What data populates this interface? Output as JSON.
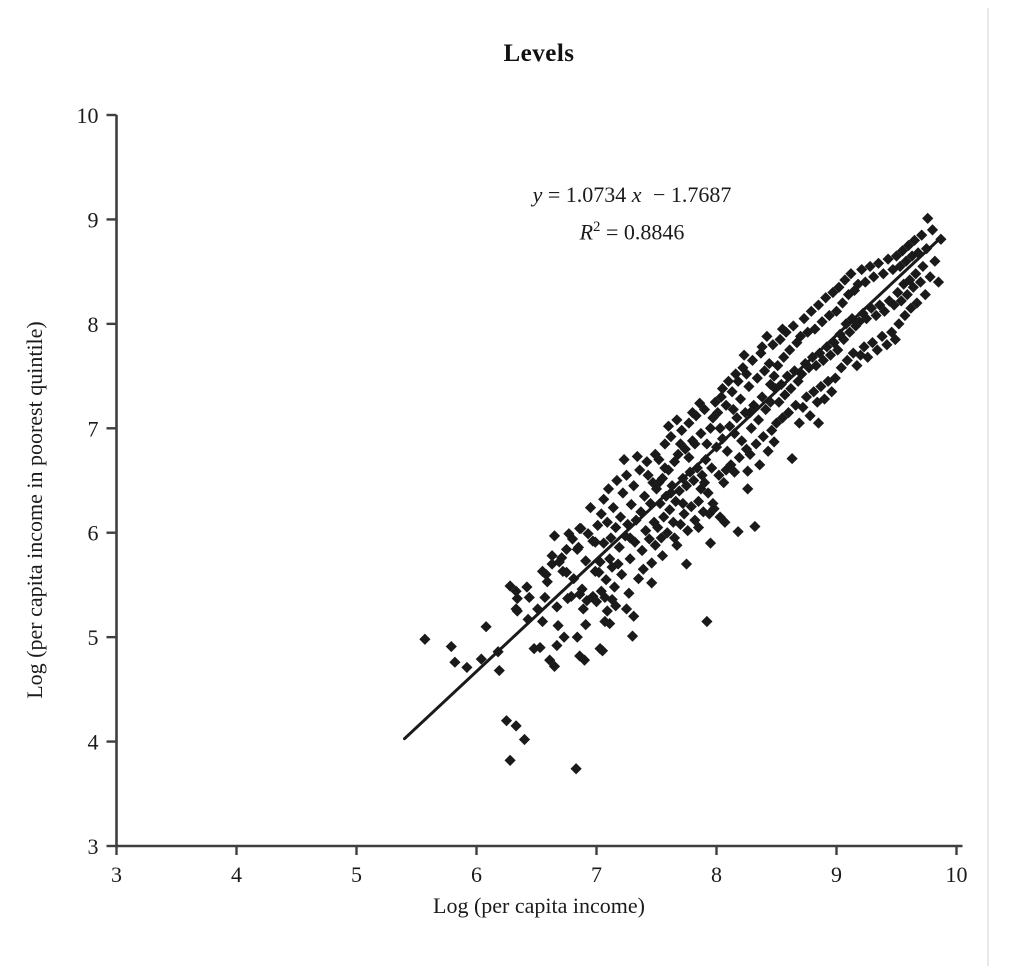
{
  "chart_data": {
    "type": "scatter",
    "title": "Levels",
    "xlabel": "Log (per capita income)",
    "ylabel": "Log (per capita income in poorest quintile)",
    "xlim": [
      3,
      10
    ],
    "ylim": [
      3,
      10
    ],
    "x_ticks": [
      "3",
      "4",
      "5",
      "6",
      "7",
      "8",
      "9",
      "10"
    ],
    "y_ticks": [
      "3",
      "4",
      "5",
      "6",
      "7",
      "8",
      "9",
      "10"
    ],
    "grid": false,
    "legend": "none",
    "marker": "diamond",
    "marker_color": "#1a1a1a",
    "axis_color": "#3f3f3f",
    "regression": {
      "slope": 1.0734,
      "intercept": -1.7687,
      "r_squared": 0.8846,
      "line_x": [
        5.4,
        9.86
      ]
    },
    "points": [
      [
        5.57,
        4.98
      ],
      [
        5.79,
        4.91
      ],
      [
        5.82,
        4.76
      ],
      [
        5.92,
        4.71
      ],
      [
        6.04,
        4.79
      ],
      [
        6.08,
        5.1
      ],
      [
        6.18,
        4.86
      ],
      [
        6.19,
        4.68
      ],
      [
        6.28,
        5.49
      ],
      [
        6.33,
        5.44
      ],
      [
        6.34,
        5.37
      ],
      [
        6.42,
        5.48
      ],
      [
        6.44,
        5.38
      ],
      [
        6.33,
        5.27
      ],
      [
        6.48,
        4.89
      ],
      [
        6.25,
        4.2
      ],
      [
        6.33,
        4.15
      ],
      [
        6.4,
        4.02
      ],
      [
        6.28,
        3.82
      ],
      [
        6.83,
        3.74
      ],
      [
        6.34,
        5.25
      ],
      [
        6.43,
        5.17
      ],
      [
        6.57,
        5.38
      ],
      [
        6.58,
        5.6
      ],
      [
        6.63,
        5.78
      ],
      [
        6.63,
        5.7
      ],
      [
        6.69,
        5.72
      ],
      [
        6.72,
        5.63
      ],
      [
        6.75,
        5.84
      ],
      [
        6.8,
        5.94
      ],
      [
        6.86,
        6.04
      ],
      [
        6.93,
        5.99
      ],
      [
        6.97,
        5.92
      ],
      [
        6.84,
        5.84
      ],
      [
        6.67,
        5.29
      ],
      [
        6.68,
        5.11
      ],
      [
        6.67,
        4.92
      ],
      [
        6.65,
        4.72
      ],
      [
        6.76,
        5.37
      ],
      [
        6.79,
        5.39
      ],
      [
        6.86,
        5.41
      ],
      [
        6.88,
        5.46
      ],
      [
        6.92,
        5.35
      ],
      [
        6.97,
        5.39
      ],
      [
        6.84,
        5.0
      ],
      [
        6.86,
        4.82
      ],
      [
        6.9,
        4.78
      ],
      [
        6.51,
        5.27
      ],
      [
        6.53,
        4.9
      ],
      [
        6.55,
        5.63
      ],
      [
        6.59,
        5.53
      ],
      [
        6.61,
        4.78
      ],
      [
        6.65,
        5.97
      ],
      [
        6.71,
        5.76
      ],
      [
        6.73,
        5.0
      ],
      [
        6.77,
        5.99
      ],
      [
        6.81,
        5.56
      ],
      [
        6.85,
        5.86
      ],
      [
        6.87,
        6.04
      ],
      [
        6.89,
        5.27
      ],
      [
        6.91,
        5.73
      ],
      [
        6.95,
        6.24
      ],
      [
        6.99,
        5.91
      ],
      [
        6.55,
        5.15
      ],
      [
        6.75,
        5.62
      ],
      [
        6.91,
        5.12
      ],
      [
        6.99,
        5.63
      ],
      [
        7.0,
        5.34
      ],
      [
        7.04,
        5.44
      ],
      [
        7.07,
        5.38
      ],
      [
        7.03,
        4.89
      ],
      [
        7.07,
        5.15
      ],
      [
        7.11,
        5.75
      ],
      [
        7.13,
        5.67
      ],
      [
        7.3,
        5.01
      ],
      [
        7.05,
        4.87
      ],
      [
        7.11,
        5.13
      ],
      [
        7.25,
        5.27
      ],
      [
        7.13,
        5.36
      ],
      [
        7.28,
        5.75
      ],
      [
        7.01,
        6.07
      ],
      [
        7.02,
        5.62
      ],
      [
        7.04,
        6.18
      ],
      [
        7.06,
        5.9
      ],
      [
        7.06,
        6.32
      ],
      [
        7.08,
        5.55
      ],
      [
        7.09,
        6.1
      ],
      [
        7.1,
        6.42
      ],
      [
        7.12,
        5.95
      ],
      [
        7.14,
        6.24
      ],
      [
        7.15,
        5.48
      ],
      [
        7.16,
        6.05
      ],
      [
        7.17,
        6.5
      ],
      [
        7.19,
        5.86
      ],
      [
        7.2,
        6.15
      ],
      [
        7.21,
        5.6
      ],
      [
        7.22,
        6.38
      ],
      [
        7.24,
        5.97
      ],
      [
        7.25,
        6.55
      ],
      [
        7.26,
        6.08
      ],
      [
        7.28,
        5.95
      ],
      [
        7.29,
        6.27
      ],
      [
        7.31,
        6.45
      ],
      [
        7.32,
        5.91
      ],
      [
        7.33,
        6.12
      ],
      [
        7.35,
        5.56
      ],
      [
        7.36,
        6.6
      ],
      [
        7.37,
        6.2
      ],
      [
        7.38,
        5.83
      ],
      [
        7.4,
        6.35
      ],
      [
        7.41,
        6.02
      ],
      [
        7.42,
        6.68
      ],
      [
        7.44,
        5.94
      ],
      [
        7.45,
        6.28
      ],
      [
        7.46,
        5.71
      ],
      [
        7.47,
        6.48
      ],
      [
        7.48,
        6.1
      ],
      [
        7.49,
        5.88
      ],
      [
        7.03,
        5.72
      ],
      [
        7.18,
        5.7
      ],
      [
        7.27,
        5.42
      ],
      [
        7.34,
        6.73
      ],
      [
        7.39,
        5.65
      ],
      [
        7.43,
        6.55
      ],
      [
        7.49,
        6.75
      ],
      [
        7.16,
        5.3
      ],
      [
        7.23,
        6.7
      ],
      [
        7.09,
        5.25
      ],
      [
        7.31,
        5.2
      ],
      [
        7.46,
        5.52
      ],
      [
        7.92,
        5.15
      ],
      [
        7.94,
        6.18
      ],
      [
        7.98,
        6.23
      ],
      [
        7.86,
        7.24
      ],
      [
        7.5,
        6.42
      ],
      [
        7.51,
        6.05
      ],
      [
        7.52,
        6.7
      ],
      [
        7.53,
        6.28
      ],
      [
        7.54,
        5.95
      ],
      [
        7.55,
        6.52
      ],
      [
        7.56,
        6.15
      ],
      [
        7.57,
        6.85
      ],
      [
        7.58,
        6.35
      ],
      [
        7.59,
        6.0
      ],
      [
        7.6,
        6.6
      ],
      [
        7.61,
        6.22
      ],
      [
        7.62,
        6.92
      ],
      [
        7.63,
        6.45
      ],
      [
        7.64,
        6.1
      ],
      [
        7.65,
        6.68
      ],
      [
        7.66,
        6.3
      ],
      [
        7.67,
        5.88
      ],
      [
        7.68,
        6.75
      ],
      [
        7.69,
        6.4
      ],
      [
        7.7,
        6.08
      ],
      [
        7.71,
        6.98
      ],
      [
        7.72,
        6.52
      ],
      [
        7.73,
        6.18
      ],
      [
        7.74,
        6.8
      ],
      [
        7.75,
        6.45
      ],
      [
        7.76,
        6.02
      ],
      [
        7.77,
        7.05
      ],
      [
        7.78,
        6.58
      ],
      [
        7.79,
        6.25
      ],
      [
        7.8,
        6.88
      ],
      [
        7.81,
        6.5
      ],
      [
        7.82,
        6.12
      ],
      [
        7.83,
        7.12
      ],
      [
        7.84,
        6.62
      ],
      [
        7.85,
        6.3
      ],
      [
        7.87,
        6.95
      ],
      [
        7.88,
        6.55
      ],
      [
        7.89,
        6.2
      ],
      [
        7.9,
        7.18
      ],
      [
        7.91,
        6.7
      ],
      [
        7.93,
        6.38
      ],
      [
        7.95,
        7.0
      ],
      [
        7.96,
        6.62
      ],
      [
        7.97,
        6.28
      ],
      [
        7.99,
        7.25
      ],
      [
        7.52,
        6.48
      ],
      [
        7.57,
        6.62
      ],
      [
        7.62,
        6.38
      ],
      [
        7.67,
        7.08
      ],
      [
        7.72,
        6.28
      ],
      [
        7.77,
        6.72
      ],
      [
        7.82,
        6.85
      ],
      [
        7.87,
        6.42
      ],
      [
        7.92,
        6.85
      ],
      [
        7.97,
        7.1
      ],
      [
        7.55,
        5.78
      ],
      [
        7.65,
        5.95
      ],
      [
        7.75,
        5.7
      ],
      [
        7.85,
        6.05
      ],
      [
        7.95,
        5.9
      ],
      [
        7.6,
        7.02
      ],
      [
        7.7,
        6.85
      ],
      [
        7.8,
        7.15
      ],
      [
        7.9,
        6.48
      ],
      [
        8.03,
        6.15
      ],
      [
        8.07,
        6.1
      ],
      [
        8.32,
        6.06
      ],
      [
        8.18,
        6.01
      ],
      [
        8.26,
        6.59
      ],
      [
        8.26,
        6.42
      ],
      [
        8.28,
        6.75
      ],
      [
        8.48,
        6.87
      ],
      [
        8.0,
        6.82
      ],
      [
        8.01,
        7.15
      ],
      [
        8.02,
        6.55
      ],
      [
        8.04,
        7.3
      ],
      [
        8.05,
        6.9
      ],
      [
        8.06,
        6.48
      ],
      [
        8.08,
        7.22
      ],
      [
        8.09,
        6.78
      ],
      [
        8.1,
        7.45
      ],
      [
        8.11,
        7.02
      ],
      [
        8.12,
        6.65
      ],
      [
        8.13,
        7.35
      ],
      [
        8.15,
        6.95
      ],
      [
        8.16,
        7.52
      ],
      [
        8.17,
        7.1
      ],
      [
        8.19,
        6.72
      ],
      [
        8.2,
        7.28
      ],
      [
        8.21,
        6.88
      ],
      [
        8.22,
        7.58
      ],
      [
        8.24,
        7.15
      ],
      [
        8.25,
        6.8
      ],
      [
        8.27,
        7.4
      ],
      [
        8.29,
        7.0
      ],
      [
        8.3,
        7.65
      ],
      [
        8.31,
        7.22
      ],
      [
        8.33,
        6.85
      ],
      [
        8.34,
        7.48
      ],
      [
        8.35,
        7.08
      ],
      [
        8.37,
        7.72
      ],
      [
        8.38,
        7.3
      ],
      [
        8.39,
        6.92
      ],
      [
        8.4,
        7.55
      ],
      [
        8.41,
        7.18
      ],
      [
        8.43,
        6.78
      ],
      [
        8.44,
        7.62
      ],
      [
        8.45,
        7.25
      ],
      [
        8.46,
        6.98
      ],
      [
        8.47,
        7.8
      ],
      [
        8.49,
        7.38
      ],
      [
        8.5,
        7.05
      ],
      [
        8.03,
        7.0
      ],
      [
        8.14,
        7.18
      ],
      [
        8.23,
        7.7
      ],
      [
        8.36,
        6.65
      ],
      [
        8.42,
        7.88
      ],
      [
        8.08,
        6.6
      ],
      [
        8.18,
        7.45
      ],
      [
        8.28,
        7.15
      ],
      [
        8.38,
        7.78
      ],
      [
        8.48,
        7.5
      ],
      [
        8.05,
        7.38
      ],
      [
        8.15,
        6.58
      ],
      [
        8.25,
        7.52
      ],
      [
        8.45,
        7.42
      ],
      [
        8.63,
        6.71
      ],
      [
        8.51,
        7.6
      ],
      [
        8.52,
        7.25
      ],
      [
        8.53,
        7.85
      ],
      [
        8.54,
        7.42
      ],
      [
        8.55,
        7.1
      ],
      [
        8.56,
        7.68
      ],
      [
        8.57,
        7.32
      ],
      [
        8.58,
        7.92
      ],
      [
        8.59,
        7.5
      ],
      [
        8.6,
        7.15
      ],
      [
        8.61,
        7.75
      ],
      [
        8.62,
        7.38
      ],
      [
        8.64,
        7.98
      ],
      [
        8.65,
        7.55
      ],
      [
        8.66,
        7.22
      ],
      [
        8.67,
        7.82
      ],
      [
        8.68,
        7.45
      ],
      [
        8.69,
        7.05
      ],
      [
        8.7,
        7.88
      ],
      [
        8.71,
        7.52
      ],
      [
        8.72,
        7.2
      ],
      [
        8.73,
        8.05
      ],
      [
        8.74,
        7.62
      ],
      [
        8.75,
        7.3
      ],
      [
        8.76,
        7.92
      ],
      [
        8.77,
        7.58
      ],
      [
        8.78,
        7.12
      ],
      [
        8.79,
        8.12
      ],
      [
        8.8,
        7.68
      ],
      [
        8.81,
        7.35
      ],
      [
        8.82,
        7.95
      ],
      [
        8.83,
        7.6
      ],
      [
        8.84,
        7.25
      ],
      [
        8.85,
        8.18
      ],
      [
        8.86,
        7.72
      ],
      [
        8.87,
        7.4
      ],
      [
        8.88,
        8.02
      ],
      [
        8.89,
        7.65
      ],
      [
        8.9,
        7.28
      ],
      [
        8.91,
        8.25
      ],
      [
        8.92,
        7.78
      ],
      [
        8.93,
        7.45
      ],
      [
        8.94,
        8.08
      ],
      [
        8.95,
        7.7
      ],
      [
        8.96,
        7.35
      ],
      [
        8.97,
        8.3
      ],
      [
        8.98,
        7.82
      ],
      [
        8.99,
        7.48
      ],
      [
        8.55,
        7.95
      ],
      [
        8.85,
        7.05
      ],
      [
        9.0,
        8.12
      ],
      [
        9.01,
        7.75
      ],
      [
        9.02,
        8.35
      ],
      [
        9.03,
        7.9
      ],
      [
        9.04,
        7.58
      ],
      [
        9.05,
        8.2
      ],
      [
        9.06,
        7.85
      ],
      [
        9.07,
        8.42
      ],
      [
        9.08,
        8.0
      ],
      [
        9.09,
        7.65
      ],
      [
        9.1,
        8.28
      ],
      [
        9.11,
        7.92
      ],
      [
        9.12,
        8.48
      ],
      [
        9.13,
        8.05
      ],
      [
        9.14,
        7.72
      ],
      [
        9.15,
        8.32
      ],
      [
        9.16,
        7.98
      ],
      [
        9.17,
        7.6
      ],
      [
        9.18,
        8.38
      ],
      [
        9.19,
        8.02
      ],
      [
        9.2,
        7.7
      ],
      [
        9.21,
        8.52
      ],
      [
        9.22,
        8.1
      ],
      [
        9.23,
        7.78
      ],
      [
        9.24,
        8.4
      ],
      [
        9.25,
        8.05
      ],
      [
        9.26,
        7.68
      ],
      [
        9.28,
        8.55
      ],
      [
        9.29,
        8.15
      ],
      [
        9.3,
        7.82
      ],
      [
        9.31,
        8.45
      ],
      [
        9.33,
        8.08
      ],
      [
        9.34,
        7.75
      ],
      [
        9.35,
        8.58
      ],
      [
        9.36,
        8.18
      ],
      [
        9.38,
        7.88
      ],
      [
        9.39,
        8.48
      ],
      [
        9.4,
        8.12
      ],
      [
        9.42,
        7.8
      ],
      [
        9.43,
        8.62
      ],
      [
        9.44,
        8.22
      ],
      [
        9.46,
        7.92
      ],
      [
        9.47,
        8.52
      ],
      [
        9.48,
        8.18
      ],
      [
        9.49,
        7.85
      ],
      [
        9.5,
        8.65
      ],
      [
        9.51,
        8.3
      ],
      [
        9.52,
        8.0
      ],
      [
        9.53,
        8.55
      ],
      [
        9.54,
        8.22
      ],
      [
        9.55,
        8.7
      ],
      [
        9.56,
        8.38
      ],
      [
        9.57,
        8.08
      ],
      [
        9.58,
        8.6
      ],
      [
        9.59,
        8.28
      ],
      [
        9.6,
        8.75
      ],
      [
        9.61,
        8.42
      ],
      [
        9.62,
        8.15
      ],
      [
        9.63,
        8.65
      ],
      [
        9.64,
        8.35
      ],
      [
        9.65,
        8.8
      ],
      [
        9.66,
        8.48
      ],
      [
        9.67,
        8.2
      ],
      [
        9.68,
        8.68
      ],
      [
        9.7,
        8.4
      ],
      [
        9.71,
        8.85
      ],
      [
        9.72,
        8.55
      ],
      [
        9.74,
        8.28
      ],
      [
        9.75,
        8.72
      ],
      [
        9.76,
        9.01
      ],
      [
        9.78,
        8.45
      ],
      [
        9.8,
        8.9
      ],
      [
        9.82,
        8.6
      ],
      [
        9.85,
        8.4
      ],
      [
        9.87,
        8.81
      ]
    ]
  },
  "equation": {
    "lhs": "y",
    "mid": " = 1.0734 ",
    "var": "x",
    "tail": " − 1.7687",
    "r2_base": "R",
    "r2_sup": "2",
    "r2_tail": " = 0.8846"
  }
}
